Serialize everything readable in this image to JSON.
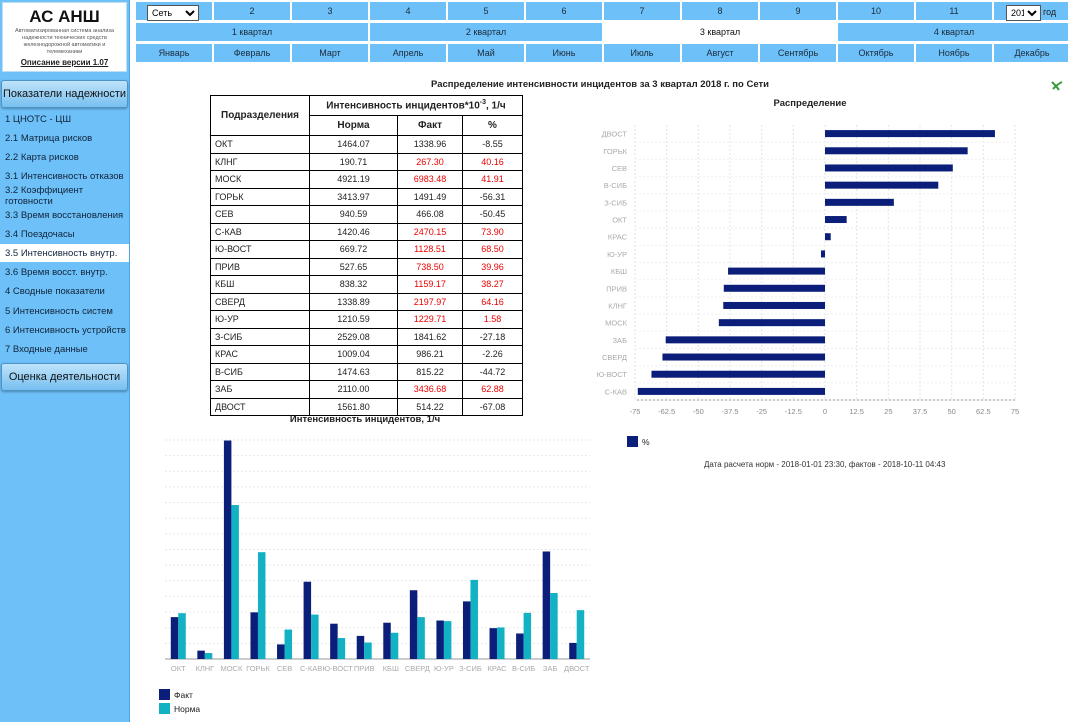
{
  "app": {
    "title": "АС АНШ",
    "subtitle": "Автоматизированная система анализа надежности технических средств железнодорожной автоматики и телемеханики",
    "version_link": "Описание версии 1.07"
  },
  "sidebar": {
    "section1": "Показатели надежности",
    "section2": "Оценка деятельности",
    "items": [
      "1 ЦНОТС - ЦШ",
      "2.1 Матрица рисков",
      "2.2 Карта рисков",
      "3.1 Интенсивность отказов",
      "3.2 Коэффициент готовности",
      "3.3 Время восстановления",
      "3.4 Поездочасы",
      "3.5 Интенсивность внутр.",
      "3.6 Время восст. внутр.",
      "4 Сводные показатели",
      "5 Интенсивность систем",
      "6 Интенсивность устройств",
      "7 Входные данные"
    ],
    "active_index": 7
  },
  "nav": {
    "network_select": "Сеть",
    "periods": [
      "2",
      "3",
      "4",
      "5",
      "6",
      "7",
      "8",
      "9",
      "10",
      "11"
    ],
    "year_select": "2018",
    "year_label": "год",
    "quarters": [
      "1 квартал",
      "2 квартал",
      "3 квартал",
      "4 квартал"
    ],
    "active_quarter": 2,
    "months": [
      "Январь",
      "Февраль",
      "Март",
      "Апрель",
      "Май",
      "Июнь",
      "Июль",
      "Август",
      "Сентябрь",
      "Октябрь",
      "Ноябрь",
      "Декабрь"
    ]
  },
  "page": {
    "title": "Распределение интенсивности инцидентов за 3 квартал 2018 г. по Сети",
    "table_chart_title": "Интенсивность инцидентов, 1/ч",
    "footer": "Дата расчета норм - 2018-01-01 23:30,    фактов - 2018-10-11 04:43"
  },
  "table": {
    "col_division": "Подразделения",
    "col_intensity": "Интенсивность инцидентов*10",
    "col_exp": "-3",
    "col_unit": ", 1/ч",
    "col_norm": "Норма",
    "col_fact": "Факт",
    "col_pct": "%",
    "rows": [
      {
        "name": "ОКТ",
        "norm": "1464.07",
        "fact": "1338.96",
        "pct": "-8.55",
        "over": false
      },
      {
        "name": "КЛНГ",
        "norm": "190.71",
        "fact": "267.30",
        "pct": "40.16",
        "over": true
      },
      {
        "name": "МОСК",
        "norm": "4921.19",
        "fact": "6983.48",
        "pct": "41.91",
        "over": true
      },
      {
        "name": "ГОРЬК",
        "norm": "3413.97",
        "fact": "1491.49",
        "pct": "-56.31",
        "over": false
      },
      {
        "name": "СЕВ",
        "norm": "940.59",
        "fact": "466.08",
        "pct": "-50.45",
        "over": false
      },
      {
        "name": "С-КАВ",
        "norm": "1420.46",
        "fact": "2470.15",
        "pct": "73.90",
        "over": true
      },
      {
        "name": "Ю-ВОСТ",
        "norm": "669.72",
        "fact": "1128.51",
        "pct": "68.50",
        "over": true
      },
      {
        "name": "ПРИВ",
        "norm": "527.65",
        "fact": "738.50",
        "pct": "39.96",
        "over": true
      },
      {
        "name": "КБШ",
        "norm": "838.32",
        "fact": "1159.17",
        "pct": "38.27",
        "over": true
      },
      {
        "name": "СВЕРД",
        "norm": "1338.89",
        "fact": "2197.97",
        "pct": "64.16",
        "over": true
      },
      {
        "name": "Ю-УР",
        "norm": "1210.59",
        "fact": "1229.71",
        "pct": "1.58",
        "over": true
      },
      {
        "name": "З-СИБ",
        "norm": "2529.08",
        "fact": "1841.62",
        "pct": "-27.18",
        "over": false
      },
      {
        "name": "КРАС",
        "norm": "1009.04",
        "fact": "986.21",
        "pct": "-2.26",
        "over": false
      },
      {
        "name": "В-СИБ",
        "norm": "1474.63",
        "fact": "815.22",
        "pct": "-44.72",
        "over": false
      },
      {
        "name": "ЗАБ",
        "norm": "2110.00",
        "fact": "3436.68",
        "pct": "62.88",
        "over": true
      },
      {
        "name": "ДВОСТ",
        "norm": "1561.80",
        "fact": "514.22",
        "pct": "-67.08",
        "over": false
      }
    ]
  },
  "colors": {
    "fact": "#0b1f7a",
    "norm": "#12b2c4",
    "sidebar": "#6ec0f8"
  },
  "chart_data": [
    {
      "type": "bar",
      "orientation": "horizontal",
      "title": "Распределение",
      "categories": [
        "ДВОСТ",
        "ГОРЬК",
        "СЕВ",
        "В-СИБ",
        "З-СИБ",
        "ОКТ",
        "КРАС",
        "Ю-УР",
        "КБШ",
        "ПРИВ",
        "КЛНГ",
        "МОСК",
        "ЗАБ",
        "СВЕРД",
        "Ю-ВОСТ",
        "С-КАВ"
      ],
      "series": [
        {
          "name": "%",
          "values": [
            67.08,
            56.31,
            50.45,
            44.72,
            27.18,
            8.55,
            2.26,
            -1.58,
            -38.27,
            -39.96,
            -40.16,
            -41.91,
            -62.88,
            -64.16,
            -68.5,
            -73.9
          ]
        }
      ],
      "xlim": [
        -75,
        75
      ],
      "xticks": [
        "-75",
        "-62.5",
        "-50",
        "-37.5",
        "-25",
        "-12.5",
        "0",
        "12.5",
        "25",
        "37.5",
        "50",
        "62.5",
        "75"
      ],
      "legend": "bottom-left"
    },
    {
      "type": "bar",
      "title": "",
      "categories": [
        "ОКТ",
        "КЛНГ",
        "МОСК",
        "ГОРЬК",
        "СЕВ",
        "С-КАВ",
        "Ю-ВОСТ",
        "ПРИВ",
        "КБШ",
        "СВЕРД",
        "Ю-УР",
        "З-СИБ",
        "КРАС",
        "В-СИБ",
        "ЗАБ",
        "ДВОСТ"
      ],
      "series": [
        {
          "name": "Факт",
          "values": [
            1338.96,
            267.3,
            6983.48,
            1491.49,
            466.08,
            2470.15,
            1128.51,
            738.5,
            1159.17,
            2197.97,
            1229.71,
            1841.62,
            986.21,
            815.22,
            3436.68,
            514.22
          ]
        },
        {
          "name": "Норма",
          "values": [
            1464.07,
            190.71,
            4921.19,
            3413.97,
            940.59,
            1420.46,
            669.72,
            527.65,
            838.32,
            1338.89,
            1210.59,
            2529.08,
            1009.04,
            1474.63,
            2110.0,
            1561.8
          ]
        }
      ],
      "ylim": [
        0,
        7000
      ],
      "legend": "bottom-left"
    }
  ]
}
